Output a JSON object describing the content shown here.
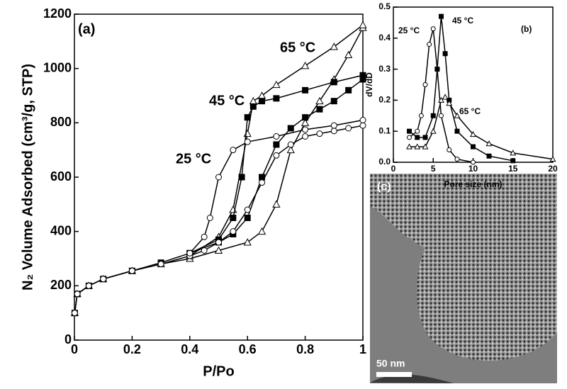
{
  "chart_data": [
    {
      "type": "line",
      "panel_label": "(a)",
      "xlabel": "P/Po",
      "ylabel": "N₂ Volume Adsorbed (cm³/g, STP)",
      "xlim": [
        0,
        1
      ],
      "xticks": [
        0,
        0.2,
        0.4,
        0.6,
        0.8,
        1
      ],
      "ylim": [
        0,
        1200
      ],
      "yticks": [
        0,
        200,
        400,
        600,
        800,
        1000,
        1200
      ],
      "series": [
        {
          "name": "65 °C",
          "color": "#000000",
          "marker": "triangle",
          "marker_fill": "#ffffff",
          "x": [
            0.001,
            0.01,
            0.05,
            0.1,
            0.2,
            0.3,
            0.4,
            0.5,
            0.6,
            0.65,
            0.7,
            0.75,
            0.8,
            0.85,
            0.9,
            0.95,
            1,
            1,
            0.9,
            0.8,
            0.7,
            0.65,
            0.62,
            0.6,
            0.55,
            0.5,
            0.4
          ],
          "values": [
            100,
            170,
            200,
            225,
            255,
            280,
            300,
            330,
            360,
            400,
            500,
            700,
            800,
            880,
            960,
            1050,
            1150,
            1160,
            1080,
            1010,
            940,
            900,
            880,
            760,
            480,
            380,
            310
          ]
        },
        {
          "name": "45 °C",
          "color": "#000000",
          "marker": "square",
          "marker_fill": "#000000",
          "x": [
            0.001,
            0.01,
            0.05,
            0.1,
            0.2,
            0.3,
            0.4,
            0.5,
            0.55,
            0.6,
            0.65,
            0.7,
            0.75,
            0.8,
            0.85,
            0.9,
            0.95,
            1,
            1,
            0.9,
            0.8,
            0.7,
            0.65,
            0.62,
            0.6,
            0.58,
            0.55,
            0.5,
            0.4
          ],
          "values": [
            100,
            170,
            200,
            225,
            255,
            285,
            320,
            360,
            390,
            450,
            600,
            720,
            780,
            820,
            850,
            880,
            920,
            960,
            975,
            950,
            920,
            890,
            880,
            860,
            820,
            600,
            450,
            370,
            320
          ]
        },
        {
          "name": "25 °C",
          "color": "#000000",
          "marker": "circle",
          "marker_fill": "#ffffff",
          "x": [
            0.001,
            0.01,
            0.05,
            0.1,
            0.2,
            0.3,
            0.4,
            0.45,
            0.5,
            0.55,
            0.6,
            0.65,
            0.7,
            0.75,
            0.8,
            0.85,
            0.9,
            0.95,
            1,
            1,
            0.9,
            0.8,
            0.7,
            0.6,
            0.55,
            0.5,
            0.47,
            0.45,
            0.4
          ],
          "values": [
            100,
            170,
            200,
            225,
            255,
            280,
            310,
            330,
            360,
            400,
            480,
            580,
            680,
            720,
            750,
            760,
            770,
            780,
            790,
            810,
            790,
            775,
            750,
            730,
            700,
            600,
            450,
            380,
            320
          ]
        }
      ]
    },
    {
      "type": "line",
      "panel_label": "(b)",
      "xlabel": "Pore size (nm)",
      "ylabel": "dV/dD",
      "xlim": [
        0,
        20
      ],
      "xticks": [
        0,
        5,
        10,
        15,
        20
      ],
      "ylim": [
        0,
        0.5
      ],
      "yticks": [
        {
          "value": 0,
          "label": "0.0"
        },
        0.1,
        0.2,
        0.3,
        0.4,
        0.5
      ],
      "series": [
        {
          "name": "25 °C",
          "color": "#000000",
          "marker": "circle",
          "marker_fill": "#ffffff",
          "x": [
            2,
            3,
            3.5,
            4,
            4.5,
            5,
            5.5,
            6,
            7,
            8,
            10
          ],
          "values": [
            0.08,
            0.1,
            0.15,
            0.25,
            0.38,
            0.43,
            0.3,
            0.15,
            0.04,
            0.01,
            0
          ]
        },
        {
          "name": "45 °C",
          "color": "#000000",
          "marker": "square",
          "marker_fill": "#000000",
          "x": [
            2,
            3,
            4,
            5,
            5.5,
            6,
            6.5,
            7,
            8,
            10,
            12,
            15
          ],
          "values": [
            0.1,
            0.08,
            0.08,
            0.15,
            0.3,
            0.47,
            0.35,
            0.2,
            0.1,
            0.05,
            0.02,
            0.005
          ]
        },
        {
          "name": "65 °C",
          "color": "#000000",
          "marker": "triangle",
          "marker_fill": "#ffffff",
          "x": [
            2,
            3,
            4,
            5,
            6,
            6.5,
            7,
            8,
            10,
            12,
            15,
            20
          ],
          "values": [
            0.05,
            0.05,
            0.05,
            0.1,
            0.2,
            0.21,
            0.19,
            0.15,
            0.09,
            0.06,
            0.03,
            0.01
          ]
        }
      ]
    }
  ],
  "image_panel": {
    "label": "(c)",
    "scale_bar": "50 nm"
  }
}
